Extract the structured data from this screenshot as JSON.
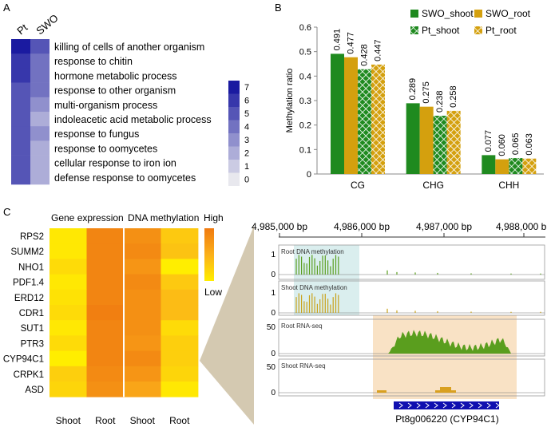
{
  "panel_labels": {
    "a": "A",
    "b": "B",
    "c": "C"
  },
  "chart_data": [
    {
      "id": "A",
      "type": "heatmap",
      "columns": [
        "Pt",
        "SWO"
      ],
      "rows": [
        "killing of cells of another organism",
        "response to chitin",
        "hormone metabolic process",
        "response to other organism",
        "multi-organism process",
        "indoleacetic acid metabolic process",
        "response to fungus",
        "response to oomycetes",
        "cellular response to iron ion",
        "defense response to oomycetes"
      ],
      "values": [
        [
          7,
          5
        ],
        [
          6,
          4
        ],
        [
          6,
          4
        ],
        [
          5,
          4
        ],
        [
          5,
          3
        ],
        [
          5,
          2
        ],
        [
          5,
          3
        ],
        [
          5,
          2
        ],
        [
          5,
          2
        ],
        [
          5,
          2
        ]
      ],
      "colorbar": {
        "min": 0,
        "max": 7,
        "ticks": [
          "7",
          "6",
          "5",
          "4",
          "3",
          "2",
          "1",
          "0"
        ],
        "low_color": "#e8e8ee",
        "high_color": "#1a1aa0"
      }
    },
    {
      "id": "B",
      "type": "bar",
      "categories": [
        "CG",
        "CHG",
        "CHH"
      ],
      "series": [
        {
          "name": "SWO_shoot",
          "values": [
            0.491,
            0.289,
            0.077
          ],
          "labels": [
            "0.491",
            "0.289",
            "0.077"
          ],
          "color": "#1f8a1f",
          "pattern": "solid"
        },
        {
          "name": "SWO_root",
          "values": [
            0.477,
            0.275,
            0.06
          ],
          "labels": [
            "0.477",
            "0.275",
            "0.060"
          ],
          "color": "#d4a00e",
          "pattern": "solid"
        },
        {
          "name": "Pt_shoot",
          "values": [
            0.428,
            0.238,
            0.065
          ],
          "labels": [
            "0.428",
            "0.238",
            "0.065"
          ],
          "color": "#1f8a1f",
          "pattern": "hatch"
        },
        {
          "name": "Pt_root",
          "values": [
            0.447,
            0.258,
            0.063
          ],
          "labels": [
            "0.447",
            "0.258",
            "0.063"
          ],
          "color": "#d4a00e",
          "pattern": "hatch"
        }
      ],
      "ylabel": "Methylation ratio",
      "ylim": [
        0,
        0.6
      ],
      "yticks": [
        "0",
        "0.1",
        "0.2",
        "0.3",
        "0.4",
        "0.5",
        "0.6"
      ]
    },
    {
      "id": "C-heatmap",
      "type": "heatmap",
      "group_headers": [
        "Gene expression",
        "DNA methylation"
      ],
      "columns": [
        "Shoot",
        "Root",
        "Shoot",
        "Root"
      ],
      "rows": [
        "RPS2",
        "SUMM2",
        "NHO1",
        "PDF1.4",
        "ERD12",
        "CDR1",
        "SUT1",
        "PTR3",
        "CYP94C1",
        "CRPK1",
        "ASD"
      ],
      "values": [
        [
          0.05,
          0.9,
          0.8,
          0.3
        ],
        [
          0.05,
          0.9,
          0.85,
          0.35
        ],
        [
          0.15,
          0.9,
          0.75,
          0.0
        ],
        [
          0.05,
          0.9,
          0.85,
          0.3
        ],
        [
          0.1,
          0.9,
          0.8,
          0.4
        ],
        [
          0.15,
          0.95,
          0.8,
          0.4
        ],
        [
          0.05,
          0.9,
          0.8,
          0.15
        ],
        [
          0.15,
          0.9,
          0.75,
          0.25
        ],
        [
          0.0,
          0.9,
          0.85,
          0.25
        ],
        [
          0.25,
          0.85,
          0.75,
          0.2
        ],
        [
          0.2,
          0.8,
          0.6,
          0.05
        ]
      ],
      "legend": {
        "high": "High",
        "low": "Low"
      }
    },
    {
      "id": "C-tracks",
      "type": "area",
      "axis_ticks": [
        "4,985,000 bp",
        "4,986,000 bp",
        "4,987,000 bp",
        "4,988,000 bp"
      ],
      "tracks": [
        {
          "name": "Root DNA methylation",
          "ymin": "0",
          "ymax": "1",
          "color": "#5a9e1e",
          "kind": "spikes"
        },
        {
          "name": "Shoot DNA methylation",
          "ymin": "0",
          "ymax": "1",
          "color": "#c9a21a",
          "kind": "spikes"
        },
        {
          "name": "Root RNA-seq",
          "ymin": "0",
          "ymax": "50",
          "color": "#5a9e1e",
          "kind": "area"
        },
        {
          "name": "Shoot RNA-seq",
          "ymin": "0",
          "ymax": "50",
          "color": "#d9a020",
          "kind": "area"
        }
      ],
      "gene_label": "Pt8g006220 (CYP94C1)"
    }
  ]
}
